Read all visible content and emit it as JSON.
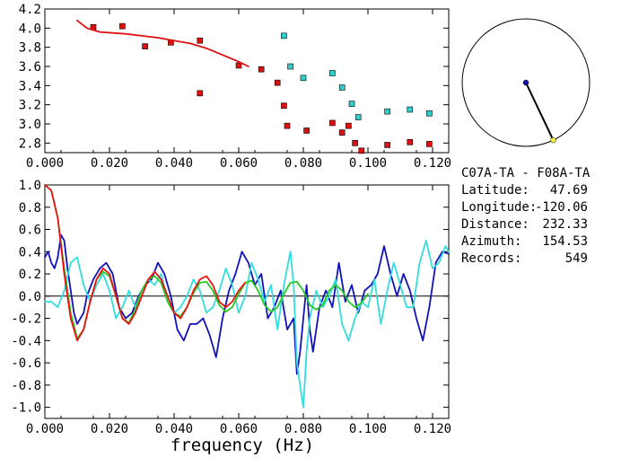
{
  "chart_data": [
    {
      "type": "scatter",
      "xlim": [
        0.0,
        0.125
      ],
      "ylim": [
        2.7,
        4.2
      ],
      "xticks": [
        0.0,
        0.02,
        0.04,
        0.06,
        0.08,
        0.1,
        0.12
      ],
      "xtick_labels": [
        "0.000",
        "0.020",
        "0.040",
        "0.060",
        "0.080",
        "0.100",
        "0.120"
      ],
      "yticks": [
        2.8,
        3.0,
        3.2,
        3.4,
        3.6,
        3.8,
        4.0,
        4.2
      ],
      "ytick_labels": [
        "2.8",
        "3.0",
        "3.2",
        "3.4",
        "3.6",
        "3.8",
        "4.0",
        "4.2"
      ],
      "series": [
        {
          "kind": "points",
          "color": "#dd1111",
          "x": [
            0.015,
            0.024,
            0.031,
            0.039,
            0.048,
            0.048,
            0.06,
            0.067,
            0.072,
            0.074,
            0.075,
            0.081,
            0.089,
            0.092,
            0.094,
            0.096,
            0.098,
            0.106,
            0.113,
            0.119
          ],
          "y": [
            4.01,
            4.02,
            3.81,
            3.85,
            3.87,
            3.32,
            3.61,
            3.57,
            3.43,
            3.19,
            2.98,
            2.93,
            3.01,
            2.91,
            2.98,
            2.8,
            2.72,
            2.78,
            2.81,
            2.79
          ]
        },
        {
          "kind": "points",
          "color": "#33cccc",
          "x": [
            0.074,
            0.076,
            0.08,
            0.089,
            0.092,
            0.095,
            0.097,
            0.106,
            0.113,
            0.119
          ],
          "y": [
            3.92,
            3.6,
            3.48,
            3.53,
            3.38,
            3.21,
            3.07,
            3.13,
            3.15,
            3.11
          ]
        },
        {
          "kind": "line",
          "color": "#dd1111",
          "x": [
            0.01,
            0.013,
            0.017,
            0.021,
            0.025,
            0.03,
            0.035,
            0.04,
            0.045,
            0.05,
            0.055,
            0.06,
            0.063
          ],
          "y": [
            4.08,
            4.0,
            3.96,
            3.95,
            3.94,
            3.92,
            3.9,
            3.87,
            3.84,
            3.79,
            3.72,
            3.65,
            3.6
          ]
        }
      ]
    },
    {
      "type": "line",
      "xlim": [
        0.0,
        0.125
      ],
      "ylim": [
        -1.1,
        1.0
      ],
      "xlabel": "frequency (Hz)",
      "xticks": [
        0.0,
        0.02,
        0.04,
        0.06,
        0.08,
        0.1,
        0.12
      ],
      "xtick_labels": [
        "0.000",
        "0.020",
        "0.040",
        "0.060",
        "0.080",
        "0.100",
        "0.120"
      ],
      "yticks": [
        1.0,
        0.8,
        0.6,
        0.4,
        0.2,
        0.0,
        -0.2,
        -0.4,
        -0.6,
        -0.8,
        -1.0
      ],
      "ytick_labels": [
        "1.0",
        "0.8",
        "0.6",
        "0.4",
        "0.2",
        "0.0",
        "-0.2",
        "-0.4",
        "-0.6",
        "-0.8",
        "-1.0"
      ],
      "zero_line": true,
      "series": [
        {
          "color": "#1111bb",
          "x": [
            0.0,
            0.001,
            0.002,
            0.003,
            0.004,
            0.005,
            0.006,
            0.007,
            0.008,
            0.009,
            0.01,
            0.011,
            0.012,
            0.013,
            0.015,
            0.017,
            0.019,
            0.021,
            0.023,
            0.025,
            0.027,
            0.029,
            0.031,
            0.033,
            0.035,
            0.037,
            0.039,
            0.041,
            0.043,
            0.045,
            0.047,
            0.049,
            0.051,
            0.053,
            0.055,
            0.057,
            0.059,
            0.061,
            0.063,
            0.065,
            0.067,
            0.069,
            0.071,
            0.073,
            0.075,
            0.077,
            0.078,
            0.079,
            0.08,
            0.081,
            0.082,
            0.083,
            0.085,
            0.087,
            0.089,
            0.091,
            0.093,
            0.095,
            0.097,
            0.099,
            0.101,
            0.103,
            0.105,
            0.107,
            0.109,
            0.111,
            0.113,
            0.115,
            0.117,
            0.119,
            0.121,
            0.123,
            0.125
          ],
          "y": [
            0.35,
            0.4,
            0.3,
            0.25,
            0.35,
            0.55,
            0.5,
            0.25,
            0.05,
            -0.15,
            -0.25,
            -0.2,
            -0.15,
            0.0,
            0.15,
            0.25,
            0.3,
            0.2,
            -0.1,
            -0.2,
            -0.15,
            0.0,
            0.1,
            0.15,
            0.3,
            0.2,
            0.0,
            -0.3,
            -0.4,
            -0.25,
            -0.25,
            -0.2,
            -0.35,
            -0.55,
            -0.2,
            0.05,
            0.2,
            0.4,
            0.3,
            0.1,
            0.2,
            -0.2,
            -0.1,
            0.05,
            -0.3,
            -0.2,
            -0.7,
            -0.5,
            -0.2,
            0.1,
            -0.3,
            -0.5,
            -0.1,
            0.05,
            -0.1,
            0.3,
            -0.05,
            0.1,
            -0.15,
            0.05,
            0.1,
            0.2,
            0.45,
            0.2,
            0.0,
            0.2,
            0.05,
            -0.2,
            -0.4,
            -0.1,
            0.3,
            0.4,
            0.38
          ]
        },
        {
          "color": "#33dddd",
          "x": [
            0.0,
            0.002,
            0.004,
            0.006,
            0.008,
            0.01,
            0.012,
            0.014,
            0.016,
            0.018,
            0.02,
            0.022,
            0.024,
            0.026,
            0.028,
            0.03,
            0.032,
            0.034,
            0.036,
            0.038,
            0.04,
            0.042,
            0.044,
            0.046,
            0.048,
            0.05,
            0.052,
            0.054,
            0.056,
            0.058,
            0.06,
            0.062,
            0.064,
            0.066,
            0.068,
            0.07,
            0.072,
            0.074,
            0.076,
            0.077,
            0.078,
            0.079,
            0.08,
            0.081,
            0.082,
            0.084,
            0.086,
            0.088,
            0.09,
            0.092,
            0.094,
            0.096,
            0.098,
            0.1,
            0.102,
            0.104,
            0.106,
            0.108,
            0.11,
            0.112,
            0.114,
            0.116,
            0.118,
            0.12,
            0.122,
            0.124,
            0.125
          ],
          "y": [
            -0.05,
            -0.05,
            -0.1,
            0.05,
            0.3,
            0.35,
            0.1,
            -0.05,
            0.1,
            0.2,
            0.05,
            -0.2,
            -0.1,
            0.05,
            -0.1,
            0.05,
            0.15,
            0.1,
            0.2,
            -0.05,
            -0.15,
            -0.1,
            0.0,
            0.15,
            0.05,
            -0.15,
            -0.1,
            0.05,
            0.25,
            0.1,
            -0.15,
            0.0,
            0.3,
            0.15,
            -0.05,
            0.1,
            -0.3,
            0.1,
            0.4,
            0.1,
            -0.6,
            -0.8,
            -1.0,
            -0.5,
            -0.2,
            0.05,
            -0.1,
            0.0,
            0.15,
            -0.25,
            -0.4,
            -0.2,
            -0.05,
            -0.1,
            0.15,
            -0.25,
            0.05,
            0.3,
            0.1,
            -0.1,
            -0.1,
            0.3,
            0.5,
            0.25,
            0.3,
            0.45,
            0.4
          ]
        },
        {
          "color": "#22cc22",
          "x": [
            0.0,
            0.002,
            0.004,
            0.006,
            0.008,
            0.01,
            0.012,
            0.014,
            0.016,
            0.018,
            0.02,
            0.022,
            0.024,
            0.026,
            0.028,
            0.03,
            0.032,
            0.034,
            0.036,
            0.038,
            0.04,
            0.042,
            0.044,
            0.046,
            0.048,
            0.05,
            0.052,
            0.054,
            0.056,
            0.058,
            0.06,
            0.062,
            0.064,
            0.066,
            0.068,
            0.07,
            0.072,
            0.074,
            0.076,
            0.078,
            0.08,
            0.082,
            0.084,
            0.086,
            0.088,
            0.09,
            0.092,
            0.094,
            0.096,
            0.098,
            0.1
          ],
          "y": [
            1.0,
            0.95,
            0.7,
            0.25,
            -0.15,
            -0.38,
            -0.3,
            -0.05,
            0.15,
            0.22,
            0.18,
            0.0,
            -0.2,
            -0.24,
            -0.12,
            0.05,
            0.15,
            0.18,
            0.12,
            -0.05,
            -0.15,
            -0.18,
            -0.1,
            0.03,
            0.12,
            0.13,
            0.05,
            -0.08,
            -0.14,
            -0.1,
            0.02,
            0.12,
            0.14,
            0.05,
            -0.08,
            -0.14,
            -0.1,
            0.02,
            0.12,
            0.13,
            0.05,
            -0.08,
            -0.12,
            -0.08,
            0.05,
            0.1,
            0.05,
            -0.05,
            -0.1,
            -0.06,
            0.02
          ]
        },
        {
          "color": "#ee1111",
          "x": [
            0.0,
            0.002,
            0.004,
            0.006,
            0.008,
            0.01,
            0.012,
            0.014,
            0.016,
            0.018,
            0.02,
            0.022,
            0.024,
            0.026,
            0.028,
            0.03,
            0.032,
            0.034,
            0.036,
            0.038,
            0.04,
            0.042,
            0.044,
            0.046,
            0.048,
            0.05,
            0.052,
            0.054,
            0.056,
            0.058,
            0.06,
            0.062
          ],
          "y": [
            1.0,
            0.95,
            0.7,
            0.2,
            -0.2,
            -0.4,
            -0.3,
            -0.05,
            0.15,
            0.25,
            0.2,
            0.0,
            -0.2,
            -0.25,
            -0.15,
            0.0,
            0.15,
            0.22,
            0.15,
            0.0,
            -0.15,
            -0.2,
            -0.1,
            0.05,
            0.15,
            0.18,
            0.1,
            -0.05,
            -0.1,
            -0.05,
            0.05,
            0.12
          ]
        }
      ]
    }
  ],
  "azimuth_plot": {
    "azimuth_deg": 154.53,
    "center_dot_color": "#1111aa",
    "end_dot_color": "#eeee44",
    "line_color": "#000000"
  },
  "info": {
    "stations": "C07A-TA - F08A-TA",
    "latitude_label": "Latitude:",
    "latitude_value": "47.69",
    "longitude_label": "Longitude:",
    "longitude_value": "-120.06",
    "distance_label": "Distance:",
    "distance_value": "232.33",
    "azimuth_label": "Azimuth:",
    "azimuth_value": "154.53",
    "records_label": "Records:",
    "records_value": "549"
  }
}
